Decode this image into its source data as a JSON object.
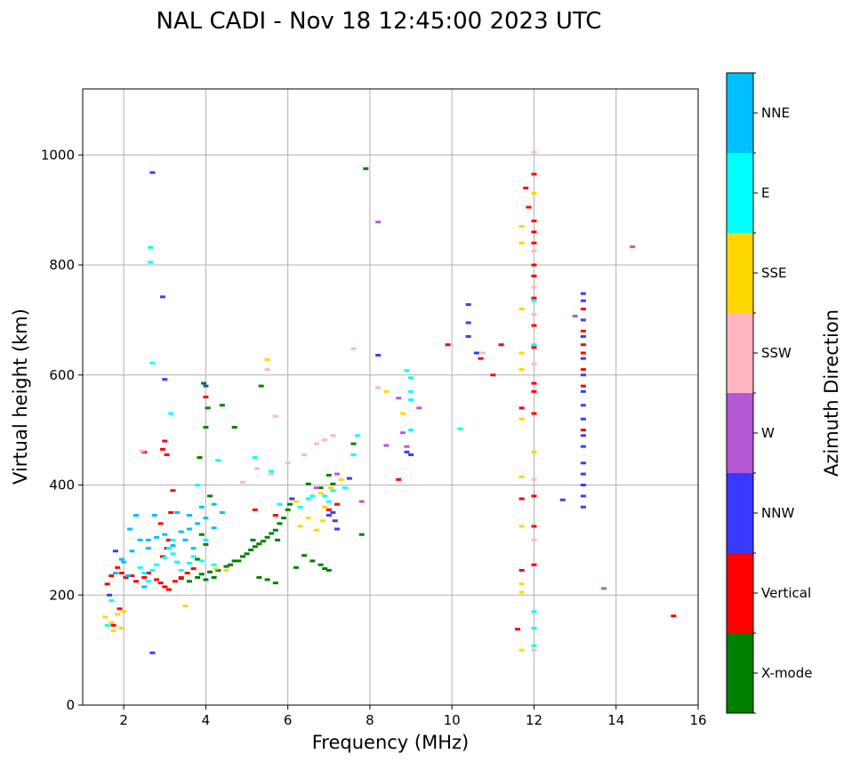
{
  "chart_data": {
    "type": "scatter",
    "title": "NAL CADI - Nov 18 12:45:00 2023 UTC",
    "xlabel": "Frequency (MHz)",
    "ylabel": "Virtual height (km)",
    "xlim": [
      1,
      16
    ],
    "ylim": [
      0,
      1120
    ],
    "xticks": [
      2,
      4,
      6,
      8,
      10,
      12,
      14,
      16
    ],
    "yticks": [
      0,
      200,
      400,
      600,
      800,
      1000
    ],
    "grid": true,
    "colorbar": {
      "label": "Azimuth Direction",
      "categories": [
        {
          "name": "X-mode",
          "color": "#008000"
        },
        {
          "name": "Vertical",
          "color": "#ff0000"
        },
        {
          "name": "NNW",
          "color": "#3a3aff"
        },
        {
          "name": "W",
          "color": "#b45ad6"
        },
        {
          "name": "SSW",
          "color": "#ffb6c1"
        },
        {
          "name": "SSE",
          "color": "#ffd700"
        },
        {
          "name": "E",
          "color": "#00ffff"
        },
        {
          "name": "NNE",
          "color": "#00bfff"
        }
      ]
    },
    "series": [
      {
        "name": "X-mode",
        "points": [
          [
            3.6,
            225
          ],
          [
            3.8,
            232
          ],
          [
            3.9,
            238
          ],
          [
            4.0,
            228
          ],
          [
            4.1,
            242
          ],
          [
            4.3,
            245
          ],
          [
            4.5,
            252
          ],
          [
            4.6,
            255
          ],
          [
            4.8,
            262
          ],
          [
            4.9,
            270
          ],
          [
            5.0,
            275
          ],
          [
            5.1,
            282
          ],
          [
            5.2,
            288
          ],
          [
            5.3,
            293
          ],
          [
            5.4,
            298
          ],
          [
            5.5,
            305
          ],
          [
            5.6,
            312
          ],
          [
            5.7,
            318
          ],
          [
            5.8,
            330
          ],
          [
            5.9,
            340
          ],
          [
            6.0,
            355
          ],
          [
            6.05,
            365
          ],
          [
            5.3,
            232
          ],
          [
            5.5,
            228
          ],
          [
            5.7,
            222
          ],
          [
            6.4,
            272
          ],
          [
            6.6,
            262
          ],
          [
            6.8,
            255
          ],
          [
            6.9,
            248
          ],
          [
            7.0,
            245
          ],
          [
            3.9,
            310
          ],
          [
            4.0,
            292
          ],
          [
            4.1,
            380
          ],
          [
            3.85,
            450
          ],
          [
            4.0,
            505
          ],
          [
            4.05,
            540
          ],
          [
            3.95,
            585
          ],
          [
            4.4,
            545
          ],
          [
            4.7,
            505
          ],
          [
            5.35,
            580
          ],
          [
            6.5,
            402
          ],
          [
            6.8,
            395
          ],
          [
            7.1,
            402
          ],
          [
            7.0,
            418
          ],
          [
            7.6,
            475
          ],
          [
            7.9,
            975
          ],
          [
            7.8,
            310
          ],
          [
            4.7,
            262
          ],
          [
            4.2,
            232
          ],
          [
            3.8,
            265
          ],
          [
            5.15,
            300
          ],
          [
            5.75,
            300
          ],
          [
            6.2,
            250
          ],
          [
            3.4,
            230
          ]
        ]
      },
      {
        "name": "Vertical",
        "points": [
          [
            1.6,
            220
          ],
          [
            1.7,
            235
          ],
          [
            1.85,
            250
          ],
          [
            1.95,
            240
          ],
          [
            2.05,
            232
          ],
          [
            2.2,
            235
          ],
          [
            2.3,
            225
          ],
          [
            2.5,
            232
          ],
          [
            2.6,
            240
          ],
          [
            2.8,
            228
          ],
          [
            2.9,
            222
          ],
          [
            3.0,
            215
          ],
          [
            3.1,
            210
          ],
          [
            3.25,
            225
          ],
          [
            3.4,
            232
          ],
          [
            3.55,
            240
          ],
          [
            3.7,
            248
          ],
          [
            2.95,
            270
          ],
          [
            3.05,
            285
          ],
          [
            3.1,
            300
          ],
          [
            2.9,
            330
          ],
          [
            3.15,
            350
          ],
          [
            3.2,
            390
          ],
          [
            3.0,
            480
          ],
          [
            2.95,
            465
          ],
          [
            3.05,
            455
          ],
          [
            1.75,
            145
          ],
          [
            1.9,
            175
          ],
          [
            2.5,
            460
          ],
          [
            4.0,
            560
          ],
          [
            5.2,
            355
          ],
          [
            5.7,
            345
          ],
          [
            7.0,
            355
          ],
          [
            7.2,
            365
          ],
          [
            8.7,
            410
          ],
          [
            9.9,
            655
          ],
          [
            10.7,
            630
          ],
          [
            11.0,
            600
          ],
          [
            11.2,
            655
          ],
          [
            11.7,
            540
          ],
          [
            11.7,
            375
          ],
          [
            11.7,
            245
          ],
          [
            11.6,
            138
          ],
          [
            11.87,
            905
          ],
          [
            11.8,
            940
          ],
          [
            12.0,
            965
          ],
          [
            12.0,
            880
          ],
          [
            12.0,
            860
          ],
          [
            12.0,
            840
          ],
          [
            12.0,
            800
          ],
          [
            12.0,
            780
          ],
          [
            12.0,
            740
          ],
          [
            12.0,
            690
          ],
          [
            12.0,
            650
          ],
          [
            12.0,
            585
          ],
          [
            12.0,
            570
          ],
          [
            12.0,
            530
          ],
          [
            12.0,
            380
          ],
          [
            12.0,
            325
          ],
          [
            12.0,
            255
          ],
          [
            13.2,
            720
          ],
          [
            13.2,
            680
          ],
          [
            13.2,
            655
          ],
          [
            13.2,
            640
          ],
          [
            13.2,
            610
          ],
          [
            13.2,
            580
          ],
          [
            13.2,
            500
          ],
          [
            15.4,
            162
          ]
        ]
      },
      {
        "name": "NNW",
        "points": [
          [
            2.95,
            742
          ],
          [
            3.0,
            592
          ],
          [
            4.0,
            580
          ],
          [
            6.1,
            375
          ],
          [
            7.1,
            350
          ],
          [
            7.15,
            335
          ],
          [
            7.2,
            320
          ],
          [
            7.0,
            345
          ],
          [
            7.5,
            412
          ],
          [
            8.2,
            636
          ],
          [
            8.9,
            460
          ],
          [
            9.0,
            455
          ],
          [
            10.4,
            728
          ],
          [
            10.4,
            695
          ],
          [
            10.4,
            670
          ],
          [
            10.6,
            640
          ],
          [
            12.7,
            373
          ],
          [
            13.2,
            748
          ],
          [
            13.2,
            735
          ],
          [
            13.2,
            700
          ],
          [
            13.2,
            670
          ],
          [
            13.2,
            630
          ],
          [
            13.2,
            600
          ],
          [
            13.2,
            570
          ],
          [
            13.2,
            545
          ],
          [
            13.2,
            520
          ],
          [
            13.2,
            490
          ],
          [
            13.2,
            470
          ],
          [
            13.2,
            440
          ],
          [
            13.2,
            420
          ],
          [
            13.2,
            400
          ],
          [
            13.2,
            380
          ],
          [
            13.2,
            360
          ],
          [
            2.7,
            968
          ],
          [
            2.7,
            95
          ],
          [
            1.65,
            200
          ],
          [
            1.8,
            280
          ]
        ]
      },
      {
        "name": "W",
        "points": [
          [
            8.2,
            878
          ],
          [
            8.4,
            472
          ],
          [
            8.7,
            558
          ],
          [
            8.8,
            495
          ],
          [
            9.2,
            540
          ],
          [
            13.0,
            707
          ],
          [
            13.7,
            212
          ],
          [
            14.4,
            833
          ],
          [
            7.8,
            370
          ],
          [
            7.2,
            420
          ],
          [
            6.7,
            395
          ],
          [
            8.9,
            470
          ]
        ]
      },
      {
        "name": "SSW",
        "points": [
          [
            2.45,
            462
          ],
          [
            5.5,
            610
          ],
          [
            5.7,
            525
          ],
          [
            6.0,
            440
          ],
          [
            6.4,
            455
          ],
          [
            6.7,
            475
          ],
          [
            6.9,
            482
          ],
          [
            7.1,
            490
          ],
          [
            7.6,
            648
          ],
          [
            8.2,
            577
          ],
          [
            10.75,
            640
          ],
          [
            12.0,
            1005
          ],
          [
            12.0,
            825
          ],
          [
            12.0,
            760
          ],
          [
            12.0,
            710
          ],
          [
            12.0,
            620
          ],
          [
            12.0,
            410
          ],
          [
            12.0,
            300
          ],
          [
            12.0,
            100
          ],
          [
            4.9,
            405
          ],
          [
            5.6,
            420
          ],
          [
            5.25,
            430
          ]
        ]
      },
      {
        "name": "SSE",
        "points": [
          [
            1.55,
            160
          ],
          [
            1.7,
            150
          ],
          [
            1.85,
            165
          ],
          [
            2.0,
            170
          ],
          [
            1.75,
            135
          ],
          [
            1.95,
            140
          ],
          [
            3.5,
            180
          ],
          [
            4.25,
            248
          ],
          [
            4.5,
            245
          ],
          [
            5.5,
            628
          ],
          [
            6.3,
            325
          ],
          [
            6.7,
            318
          ],
          [
            6.85,
            335
          ],
          [
            6.9,
            360
          ],
          [
            7.05,
            395
          ],
          [
            6.8,
            385
          ],
          [
            7.3,
            410
          ],
          [
            8.4,
            570
          ],
          [
            8.8,
            530
          ],
          [
            11.7,
            870
          ],
          [
            11.7,
            840
          ],
          [
            11.7,
            720
          ],
          [
            11.7,
            640
          ],
          [
            11.7,
            610
          ],
          [
            11.7,
            520
          ],
          [
            11.7,
            415
          ],
          [
            11.7,
            325
          ],
          [
            11.7,
            220
          ],
          [
            11.7,
            205
          ],
          [
            11.7,
            100
          ],
          [
            12.0,
            930
          ],
          [
            12.0,
            460
          ],
          [
            6.2,
            370
          ],
          [
            6.5,
            340
          ]
        ]
      },
      {
        "name": "E",
        "points": [
          [
            1.6,
            145
          ],
          [
            1.7,
            190
          ],
          [
            2.4,
            250
          ],
          [
            2.5,
            240
          ],
          [
            2.6,
            225
          ],
          [
            2.7,
            245
          ],
          [
            2.8,
            255
          ],
          [
            3.0,
            268
          ],
          [
            3.1,
            285
          ],
          [
            3.2,
            275
          ],
          [
            3.3,
            260
          ],
          [
            3.4,
            245
          ],
          [
            3.6,
            258
          ],
          [
            3.7,
            270
          ],
          [
            3.9,
            262
          ],
          [
            4.2,
            255
          ],
          [
            2.65,
            832
          ],
          [
            2.65,
            805
          ],
          [
            2.7,
            622
          ],
          [
            3.15,
            530
          ],
          [
            3.8,
            400
          ],
          [
            4.3,
            445
          ],
          [
            5.2,
            450
          ],
          [
            5.6,
            425
          ],
          [
            6.5,
            375
          ],
          [
            6.6,
            380
          ],
          [
            6.9,
            380
          ],
          [
            7.1,
            390
          ],
          [
            7.0,
            370
          ],
          [
            7.4,
            395
          ],
          [
            7.6,
            455
          ],
          [
            7.7,
            490
          ],
          [
            8.9,
            608
          ],
          [
            9.0,
            595
          ],
          [
            9.0,
            570
          ],
          [
            9.0,
            555
          ],
          [
            9.0,
            500
          ],
          [
            10.2,
            502
          ],
          [
            12.0,
            735
          ],
          [
            12.0,
            655
          ],
          [
            12.0,
            140
          ],
          [
            12.0,
            108
          ],
          [
            12.0,
            170
          ],
          [
            5.8,
            365
          ],
          [
            6.3,
            360
          ],
          [
            4.0,
            300
          ],
          [
            3.2,
            300
          ]
        ]
      },
      {
        "name": "NNE",
        "points": [
          [
            1.8,
            240
          ],
          [
            2.0,
            260
          ],
          [
            2.2,
            280
          ],
          [
            2.4,
            300
          ],
          [
            2.6,
            285
          ],
          [
            2.8,
            305
          ],
          [
            3.0,
            310
          ],
          [
            3.2,
            290
          ],
          [
            3.4,
            315
          ],
          [
            3.6,
            320
          ],
          [
            3.8,
            330
          ],
          [
            4.0,
            340
          ],
          [
            4.2,
            322
          ],
          [
            3.3,
            350
          ],
          [
            3.6,
            345
          ],
          [
            3.9,
            360
          ],
          [
            4.2,
            365
          ],
          [
            4.4,
            350
          ],
          [
            2.15,
            320
          ],
          [
            2.3,
            345
          ],
          [
            1.95,
            265
          ],
          [
            2.1,
            235
          ],
          [
            2.5,
            215
          ],
          [
            2.6,
            300
          ],
          [
            2.75,
            345
          ],
          [
            3.5,
            300
          ],
          [
            3.7,
            285
          ]
        ]
      }
    ]
  }
}
